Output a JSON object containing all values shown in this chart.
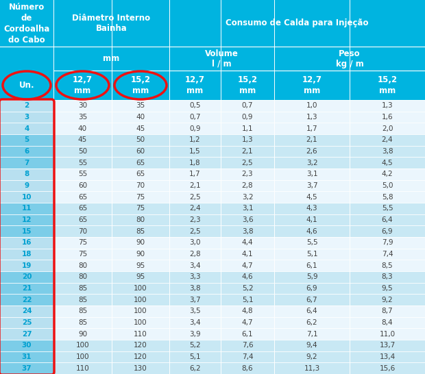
{
  "title_col1": "Número\nde\nCordoalha\ndo Cabo",
  "title_col2": "Diâmetro Interno\nBainha",
  "title_col3": "Consumo de Calda para Injeção",
  "subtitle_col2": "mm",
  "subtitle_vol": "Volume\nl / m",
  "subtitle_peso": "Peso\nkg / m",
  "header_un": "Un.",
  "header_diam1": "12,7\nmm",
  "header_diam2": "15,2\nmm",
  "header_vol1": "12,7\nmm",
  "header_vol2": "15,2\nmm",
  "header_peso1": "12,7\nmm",
  "header_peso2": "15,2\nmm",
  "rows": [
    [
      "2",
      "30",
      "35",
      "0,5",
      "0,7",
      "1,0",
      "1,3"
    ],
    [
      "3",
      "35",
      "40",
      "0,7",
      "0,9",
      "1,3",
      "1,6"
    ],
    [
      "4",
      "40",
      "45",
      "0,9",
      "1,1",
      "1,7",
      "2,0"
    ],
    [
      "5",
      "45",
      "50",
      "1,2",
      "1,3",
      "2,1",
      "2,4"
    ],
    [
      "6",
      "50",
      "60",
      "1,5",
      "2,1",
      "2,6",
      "3,8"
    ],
    [
      "7",
      "55",
      "65",
      "1,8",
      "2,5",
      "3,2",
      "4,5"
    ],
    [
      "8",
      "55",
      "65",
      "1,7",
      "2,3",
      "3,1",
      "4,2"
    ],
    [
      "9",
      "60",
      "70",
      "2,1",
      "2,8",
      "3,7",
      "5,0"
    ],
    [
      "10",
      "65",
      "75",
      "2,5",
      "3,2",
      "4,5",
      "5,8"
    ],
    [
      "11",
      "65",
      "75",
      "2,4",
      "3,1",
      "4,3",
      "5,5"
    ],
    [
      "12",
      "65",
      "80",
      "2,3",
      "3,6",
      "4,1",
      "6,4"
    ],
    [
      "15",
      "70",
      "85",
      "2,5",
      "3,8",
      "4,6",
      "6,9"
    ],
    [
      "16",
      "75",
      "90",
      "3,0",
      "4,4",
      "5,5",
      "7,9"
    ],
    [
      "18",
      "75",
      "90",
      "2,8",
      "4,1",
      "5,1",
      "7,4"
    ],
    [
      "19",
      "80",
      "95",
      "3,4",
      "4,7",
      "6,1",
      "8,5"
    ],
    [
      "20",
      "80",
      "95",
      "3,3",
      "4,6",
      "5,9",
      "8,3"
    ],
    [
      "21",
      "85",
      "100",
      "3,8",
      "5,2",
      "6,9",
      "9,5"
    ],
    [
      "22",
      "85",
      "100",
      "3,7",
      "5,1",
      "6,7",
      "9,2"
    ],
    [
      "24",
      "85",
      "100",
      "3,5",
      "4,8",
      "6,4",
      "8,7"
    ],
    [
      "25",
      "85",
      "100",
      "3,4",
      "4,7",
      "6,2",
      "8,4"
    ],
    [
      "27",
      "90",
      "110",
      "3,9",
      "6,1",
      "7,1",
      "11,0"
    ],
    [
      "30",
      "100",
      "120",
      "5,2",
      "7,6",
      "9,4",
      "13,7"
    ],
    [
      "31",
      "100",
      "120",
      "5,1",
      "7,4",
      "9,2",
      "13,4"
    ],
    [
      "37",
      "110",
      "130",
      "6,2",
      "8,6",
      "11,3",
      "15,6"
    ]
  ],
  "row_colors": [
    "white",
    "white",
    "white",
    "light",
    "light",
    "light",
    "white",
    "white",
    "white",
    "light",
    "light",
    "light",
    "white",
    "white",
    "white",
    "light",
    "light",
    "light",
    "white",
    "white",
    "white",
    "light",
    "light",
    "light"
  ],
  "blue_header_bg": "#00B4E0",
  "light_blue_row": "#C8E8F4",
  "white_row": "#EBF6FD",
  "col0_light": "#B8E0F0",
  "col0_dark": "#7CCDE8",
  "header_text_color": "#FFFFFF",
  "data_text_dark": "#404040",
  "cyan_text": "#00A0D0",
  "red_color": "#EE1111"
}
